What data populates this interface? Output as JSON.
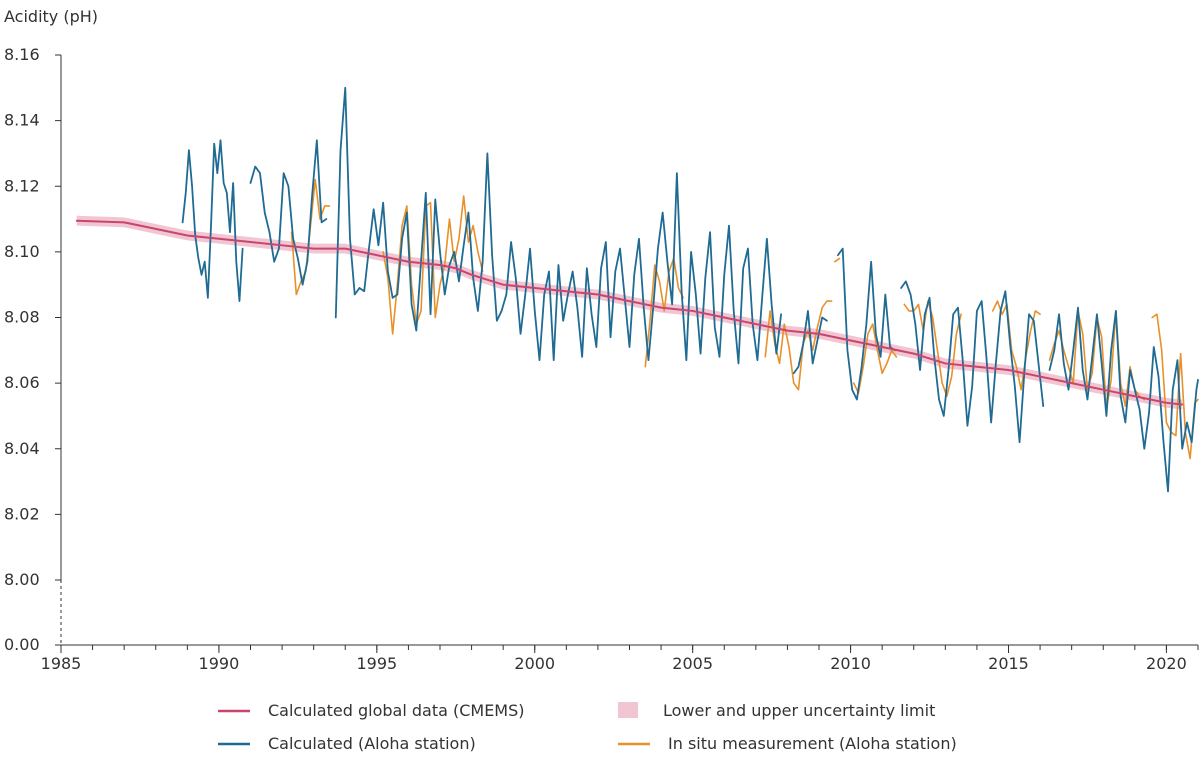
{
  "chart_data": {
    "type": "line",
    "ylabel": "Acidity (pH)",
    "xlabel": "",
    "xlim": [
      1985,
      2021
    ],
    "ylim": [
      8.0,
      8.16
    ],
    "y_break_label": "0.00",
    "x_ticks": [
      "1985",
      "1990",
      "1995",
      "2000",
      "2005",
      "2010",
      "2015",
      "2020"
    ],
    "y_ticks": [
      "8.16",
      "8.14",
      "8.12",
      "8.10",
      "8.08",
      "8.06",
      "8.04",
      "8.02",
      "8.00"
    ],
    "grid": false,
    "legend_position": "bottom",
    "legend": [
      {
        "label": "Calculated global data (CMEMS)",
        "kind": "line",
        "color": "#c8456c"
      },
      {
        "label": "Lower and upper uncertainty limit",
        "kind": "band",
        "color": "#f2c5d3"
      },
      {
        "label": "Calculated (Aloha station)",
        "kind": "line",
        "color": "#1f6b94"
      },
      {
        "label": "In situ measurement (Aloha station)",
        "kind": "line",
        "color": "#e8912b"
      }
    ],
    "series": [
      {
        "name": "Calculated global data (CMEMS)",
        "color": "#c8456c",
        "band_color": "#f2c5d3",
        "band_halfwidth": 0.0015,
        "x": [
          1985.5,
          1987.0,
          1988.0,
          1989.0,
          1990.0,
          1991.0,
          1992.0,
          1993.0,
          1994.0,
          1995.0,
          1996.0,
          1997.0,
          1997.5,
          1998.0,
          1999.0,
          2000.0,
          2001.0,
          2002.0,
          2003.0,
          2004.0,
          2005.0,
          2006.0,
          2007.0,
          2008.0,
          2009.0,
          2010.0,
          2011.0,
          2012.0,
          2013.0,
          2014.0,
          2015.0,
          2016.0,
          2017.0,
          2018.0,
          2019.0,
          2020.0,
          2020.5
        ],
        "y": [
          8.1095,
          8.109,
          8.107,
          8.105,
          8.104,
          8.103,
          8.102,
          8.101,
          8.101,
          8.099,
          8.097,
          8.096,
          8.095,
          8.093,
          8.09,
          8.089,
          8.088,
          8.087,
          8.085,
          8.083,
          8.082,
          8.08,
          8.078,
          8.076,
          8.075,
          8.073,
          8.071,
          8.069,
          8.066,
          8.065,
          8.064,
          8.062,
          8.06,
          8.058,
          8.056,
          8.054,
          8.0535
        ]
      },
      {
        "name": "Calculated (Aloha station)",
        "color": "#1f6b94",
        "segments": [
          {
            "x": [
              1988.85,
              1988.95,
              1989.05,
              1989.15,
              1989.25,
              1989.35,
              1989.45,
              1989.55,
              1989.65,
              1989.75,
              1989.85,
              1989.95,
              1990.05,
              1990.15,
              1990.25,
              1990.35,
              1990.45,
              1990.55,
              1990.65,
              1990.75
            ],
            "y": [
              8.109,
              8.118,
              8.131,
              8.12,
              8.105,
              8.098,
              8.093,
              8.097,
              8.086,
              8.108,
              8.133,
              8.124,
              8.134,
              8.121,
              8.118,
              8.106,
              8.121,
              8.097,
              8.085,
              8.101
            ]
          },
          {
            "x": [
              1991.0,
              1991.15,
              1991.3,
              1991.45,
              1991.6,
              1991.75,
              1991.9,
              1992.05,
              1992.2,
              1992.35,
              1992.5,
              1992.65,
              1992.8,
              1992.95,
              1993.1,
              1993.25,
              1993.4
            ],
            "y": [
              8.121,
              8.126,
              8.124,
              8.112,
              8.106,
              8.097,
              8.101,
              8.124,
              8.12,
              8.104,
              8.098,
              8.09,
              8.097,
              8.117,
              8.134,
              8.109,
              8.11
            ]
          },
          {
            "x": [
              1993.7,
              1993.85,
              1994.0,
              1994.15,
              1994.3,
              1994.45,
              1994.6,
              1994.75,
              1994.9,
              1995.05,
              1995.2,
              1995.35,
              1995.5,
              1995.65,
              1995.8,
              1995.95,
              1996.1,
              1996.25,
              1996.4,
              1996.55,
              1996.7,
              1996.85,
              1997.0,
              1997.15,
              1997.3,
              1997.45,
              1997.6,
              1997.75,
              1997.9,
              1998.05,
              1998.2,
              1998.35,
              1998.5,
              1998.65,
              1998.8,
              1998.95,
              1999.1,
              1999.25,
              1999.4,
              1999.55,
              1999.7,
              1999.85,
              2000.0,
              2000.15,
              2000.3,
              2000.45,
              2000.6,
              2000.75,
              2000.9,
              2001.05,
              2001.2,
              2001.35,
              2001.5,
              2001.65,
              2001.8,
              2001.95,
              2002.1,
              2002.25,
              2002.4,
              2002.55,
              2002.7,
              2002.85,
              2003.0,
              2003.15,
              2003.3,
              2003.45,
              2003.6,
              2003.75,
              2003.9,
              2004.05,
              2004.2,
              2004.35,
              2004.5,
              2004.65,
              2004.8,
              2004.95,
              2005.1,
              2005.25,
              2005.4,
              2005.55,
              2005.7,
              2005.85,
              2006.0,
              2006.15,
              2006.3,
              2006.45,
              2006.6,
              2006.75,
              2006.9,
              2007.05,
              2007.2,
              2007.35,
              2007.5,
              2007.65,
              2007.8
            ],
            "y": [
              8.08,
              8.131,
              8.15,
              8.104,
              8.087,
              8.089,
              8.088,
              8.101,
              8.113,
              8.102,
              8.115,
              8.094,
              8.086,
              8.087,
              8.104,
              8.112,
              8.084,
              8.076,
              8.097,
              8.118,
              8.081,
              8.116,
              8.1,
              8.087,
              8.096,
              8.1,
              8.091,
              8.102,
              8.112,
              8.092,
              8.082,
              8.097,
              8.13,
              8.099,
              8.079,
              8.082,
              8.087,
              8.103,
              8.092,
              8.075,
              8.087,
              8.101,
              8.082,
              8.067,
              8.087,
              8.094,
              8.067,
              8.096,
              8.079,
              8.087,
              8.094,
              8.083,
              8.068,
              8.095,
              8.081,
              8.071,
              8.095,
              8.103,
              8.074,
              8.094,
              8.101,
              8.086,
              8.071,
              8.093,
              8.104,
              8.083,
              8.067,
              8.083,
              8.101,
              8.112,
              8.097,
              8.084,
              8.124,
              8.088,
              8.067,
              8.1,
              8.087,
              8.069,
              8.092,
              8.106,
              8.077,
              8.068,
              8.093,
              8.108,
              8.082,
              8.066,
              8.095,
              8.101,
              8.078,
              8.067,
              8.086,
              8.104,
              8.084,
              8.069,
              8.081
            ]
          },
          {
            "x": [
              2008.2,
              2008.35,
              2008.5,
              2008.65,
              2008.8,
              2008.95,
              2009.1,
              2009.25
            ],
            "y": [
              8.063,
              8.065,
              8.072,
              8.082,
              8.066,
              8.073,
              8.08,
              8.079
            ]
          },
          {
            "x": [
              2009.6,
              2009.75,
              2009.9,
              2010.05,
              2010.2,
              2010.35,
              2010.5,
              2010.65,
              2010.8,
              2010.95,
              2011.1,
              2011.25,
              2011.4
            ],
            "y": [
              8.099,
              8.101,
              8.07,
              8.058,
              8.055,
              8.065,
              8.078,
              8.097,
              8.075,
              8.068,
              8.087,
              8.071,
              8.07
            ]
          },
          {
            "x": [
              2011.6,
              2011.75,
              2011.9,
              2012.05,
              2012.2,
              2012.35,
              2012.5,
              2012.65,
              2012.8,
              2012.95,
              2013.1,
              2013.25,
              2013.4,
              2013.55,
              2013.7,
              2013.85,
              2014.0,
              2014.15,
              2014.3,
              2014.45,
              2014.6,
              2014.75,
              2014.9,
              2015.05,
              2015.2,
              2015.35,
              2015.5,
              2015.65,
              2015.8,
              2015.95,
              2016.1
            ],
            "y": [
              8.089,
              8.091,
              8.087,
              8.078,
              8.064,
              8.081,
              8.086,
              8.068,
              8.055,
              8.05,
              8.064,
              8.081,
              8.083,
              8.067,
              8.047,
              8.059,
              8.082,
              8.085,
              8.068,
              8.048,
              8.066,
              8.082,
              8.088,
              8.072,
              8.059,
              8.042,
              8.063,
              8.081,
              8.079,
              8.066,
              8.053
            ]
          },
          {
            "x": [
              2016.3,
              2016.45,
              2016.6,
              2016.75,
              2016.9,
              2017.05,
              2017.2,
              2017.35,
              2017.5,
              2017.65,
              2017.8,
              2017.95,
              2018.1,
              2018.25,
              2018.4,
              2018.55,
              2018.7,
              2018.85,
              2019.0,
              2019.15,
              2019.3,
              2019.45,
              2019.6,
              2019.75,
              2019.9,
              2020.05,
              2020.2,
              2020.35,
              2020.5,
              2020.65,
              2020.8,
              2020.95,
              2021.0
            ],
            "y": [
              8.064,
              8.07,
              8.081,
              8.066,
              8.058,
              8.07,
              8.083,
              8.064,
              8.055,
              8.068,
              8.081,
              8.066,
              8.05,
              8.07,
              8.082,
              8.056,
              8.048,
              8.064,
              8.058,
              8.052,
              8.04,
              8.051,
              8.071,
              8.062,
              8.043,
              8.027,
              8.058,
              8.067,
              8.04,
              8.048,
              8.042,
              8.058,
              8.061
            ]
          }
        ]
      },
      {
        "name": "In situ measurement (Aloha station)",
        "color": "#e8912b",
        "segments": [
          {
            "x": [
              1992.3,
              1992.45,
              1992.6,
              1992.75,
              1992.9,
              1993.05,
              1993.2,
              1993.35,
              1993.5
            ],
            "y": [
              8.106,
              8.087,
              8.091,
              8.094,
              8.108,
              8.122,
              8.11,
              8.114,
              8.114
            ]
          },
          {
            "x": [
              1995.2,
              1995.35,
              1995.5,
              1995.65,
              1995.8,
              1995.95,
              1996.1,
              1996.25,
              1996.4,
              1996.55,
              1996.7,
              1996.85,
              1997.0,
              1997.15,
              1997.3,
              1997.45,
              1997.6,
              1997.75,
              1997.9,
              1998.05,
              1998.2,
              1998.35
            ],
            "y": [
              8.1,
              8.092,
              8.075,
              8.09,
              8.108,
              8.114,
              8.09,
              8.078,
              8.082,
              8.114,
              8.115,
              8.08,
              8.09,
              8.096,
              8.11,
              8.097,
              8.104,
              8.117,
              8.103,
              8.108,
              8.1,
              8.094
            ]
          },
          {
            "x": [
              2003.5,
              2003.65,
              2003.8,
              2003.95,
              2004.1,
              2004.25,
              2004.4,
              2004.55,
              2004.7
            ],
            "y": [
              8.065,
              8.079,
              8.096,
              8.091,
              8.082,
              8.094,
              8.098,
              8.089,
              8.086
            ]
          },
          {
            "x": [
              2007.3,
              2007.45,
              2007.6,
              2007.75,
              2007.9,
              2008.05,
              2008.2,
              2008.35,
              2008.5,
              2008.65,
              2008.8,
              2008.95,
              2009.1,
              2009.25,
              2009.4
            ],
            "y": [
              8.068,
              8.082,
              8.072,
              8.066,
              8.078,
              8.071,
              8.06,
              8.058,
              8.072,
              8.076,
              8.07,
              8.077,
              8.083,
              8.085,
              8.085
            ]
          },
          {
            "x": [
              2009.5,
              2009.65
            ],
            "y": [
              8.097,
              8.098
            ]
          },
          {
            "x": [
              2010.1,
              2010.25,
              2010.4,
              2010.55,
              2010.7,
              2010.85,
              2011.0,
              2011.15,
              2011.3,
              2011.45
            ],
            "y": [
              8.06,
              8.057,
              8.065,
              8.075,
              8.078,
              8.07,
              8.063,
              8.066,
              8.07,
              8.068
            ]
          },
          {
            "x": [
              2011.7,
              2011.85,
              2012.0,
              2012.15,
              2012.3,
              2012.45,
              2012.6,
              2012.75,
              2012.9,
              2013.05,
              2013.2,
              2013.35,
              2013.5
            ],
            "y": [
              8.084,
              8.082,
              8.082,
              8.084,
              8.076,
              8.085,
              8.08,
              8.07,
              8.06,
              8.056,
              8.062,
              8.075,
              8.081
            ]
          },
          {
            "x": [
              2014.5,
              2014.65,
              2014.8,
              2014.95,
              2015.1,
              2015.25,
              2015.4,
              2015.55,
              2015.7,
              2015.85,
              2016.0
            ],
            "y": [
              8.082,
              8.085,
              8.081,
              8.084,
              8.07,
              8.065,
              8.058,
              8.068,
              8.076,
              8.082,
              8.081
            ]
          },
          {
            "x": [
              2016.3,
              2016.45,
              2016.6,
              2016.75,
              2016.9,
              2017.05,
              2017.2,
              2017.35,
              2017.5,
              2017.65,
              2017.8,
              2017.95,
              2018.1,
              2018.25,
              2018.4,
              2018.55,
              2018.7,
              2018.85,
              2019.0,
              2019.15,
              2019.3
            ],
            "y": [
              8.067,
              8.072,
              8.076,
              8.07,
              8.065,
              8.06,
              8.082,
              8.075,
              8.058,
              8.063,
              8.08,
              8.074,
              8.052,
              8.061,
              8.082,
              8.06,
              8.053,
              8.065,
              8.058,
              8.056,
              8.055
            ]
          },
          {
            "x": [
              2019.55,
              2019.7,
              2019.85,
              2020.0,
              2020.15,
              2020.3,
              2020.45,
              2020.6,
              2020.75,
              2020.9,
              2021.0
            ],
            "y": [
              8.08,
              8.081,
              8.07,
              8.048,
              8.045,
              8.044,
              8.069,
              8.045,
              8.037,
              8.054,
              8.055
            ]
          }
        ]
      }
    ]
  }
}
